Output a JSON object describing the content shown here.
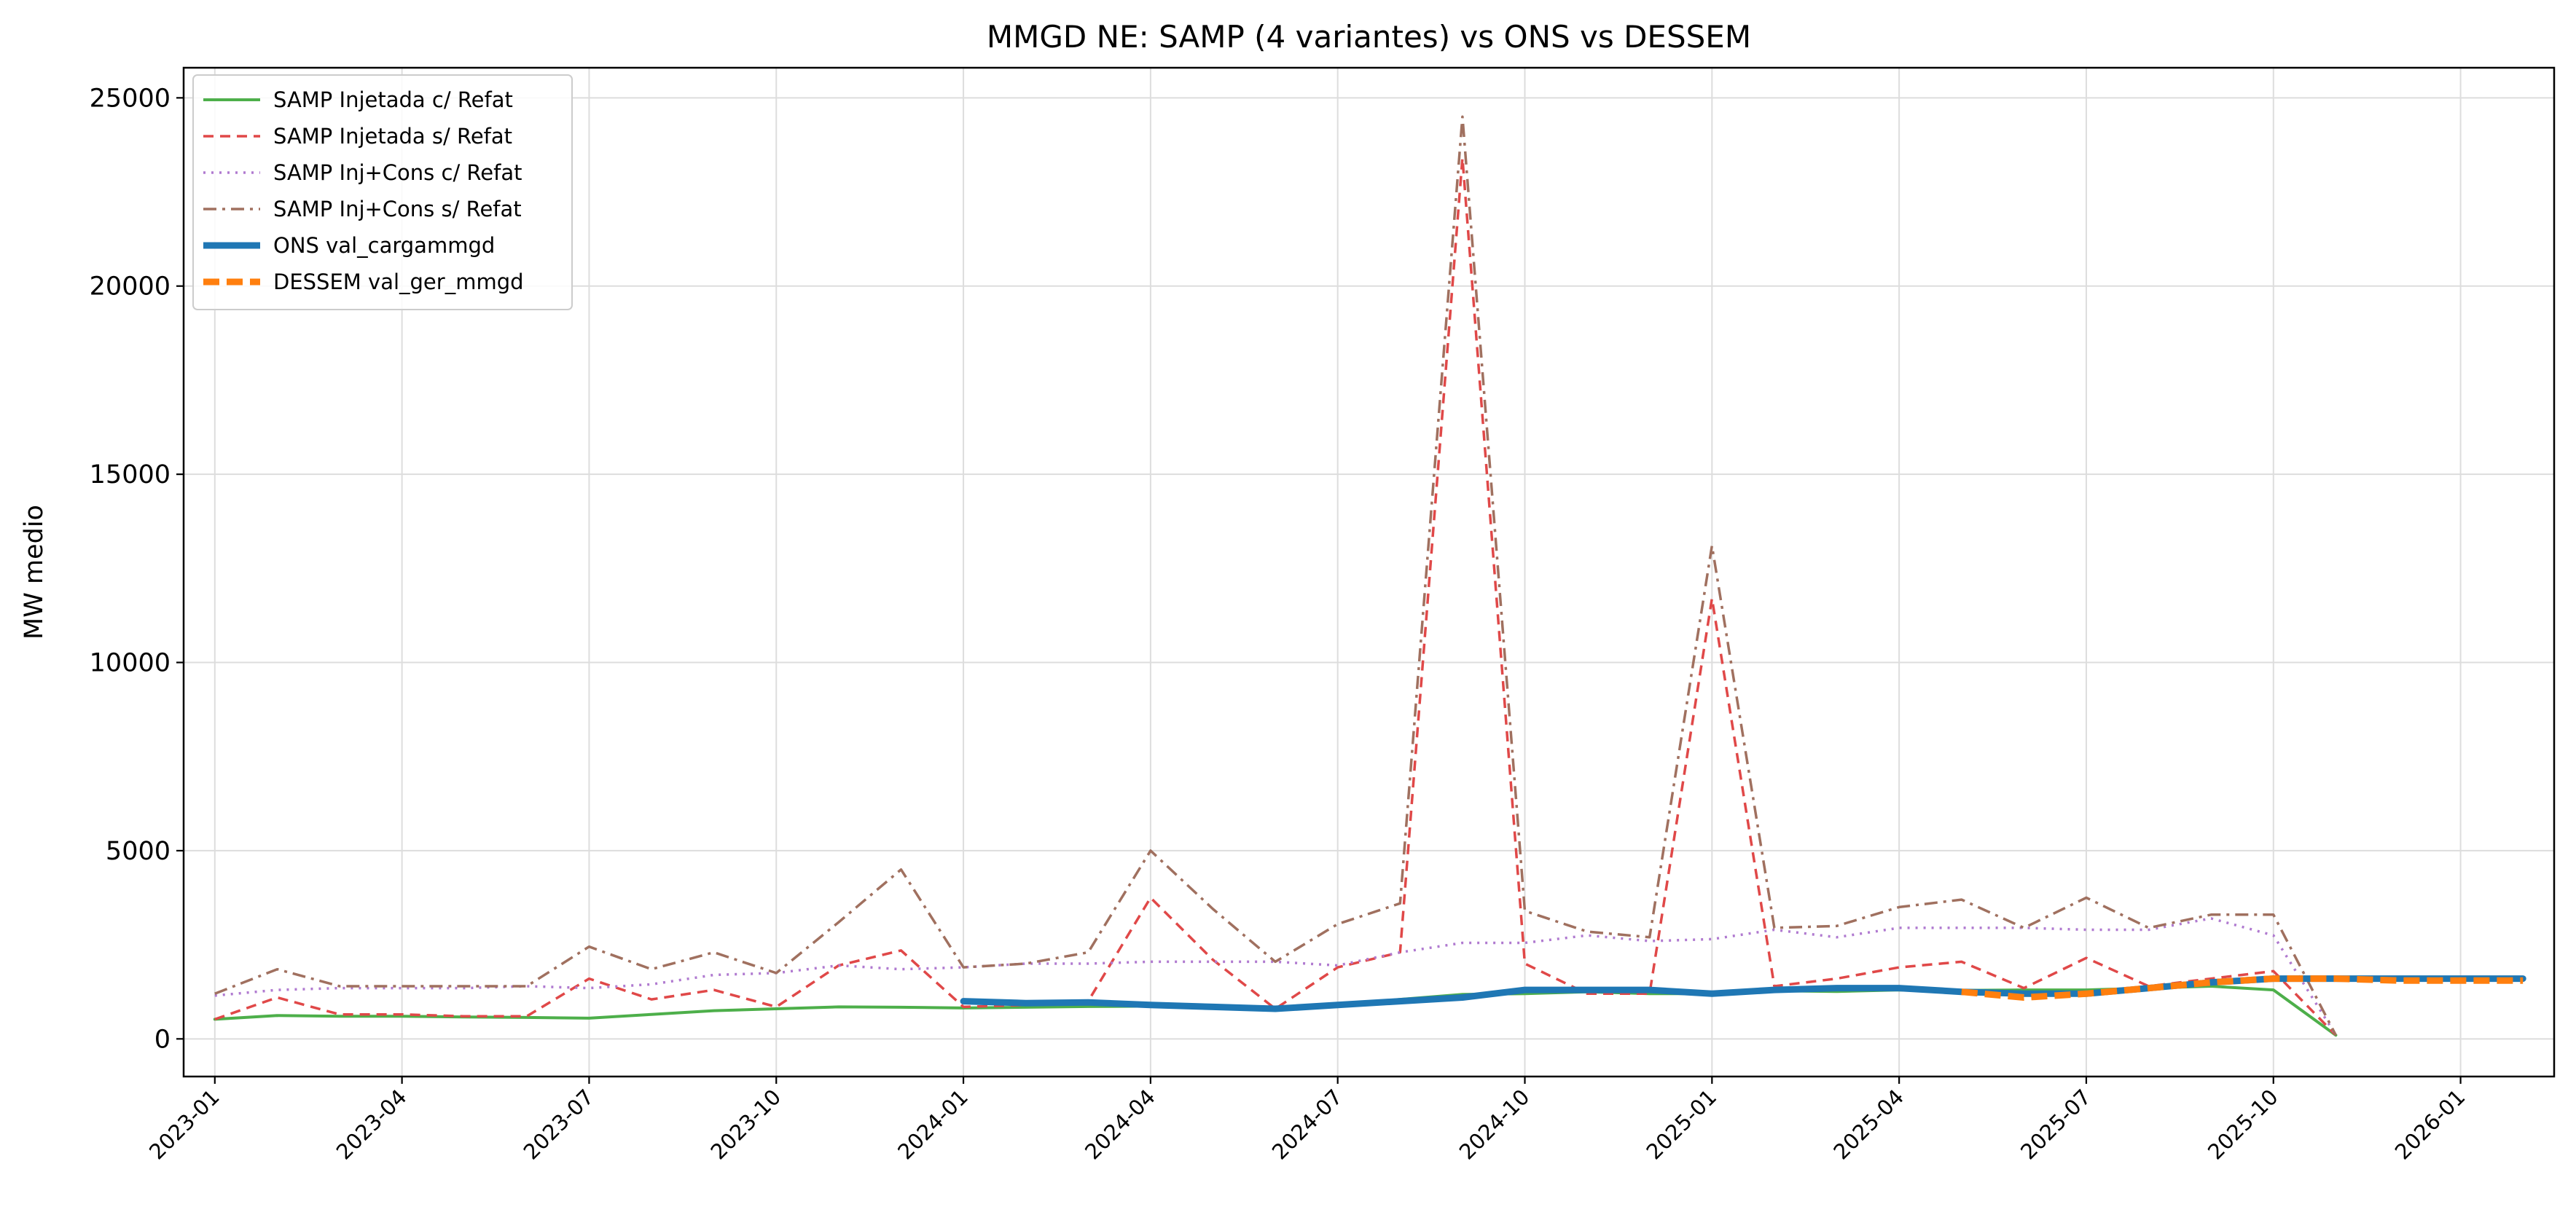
{
  "chart_data": {
    "type": "line",
    "title": "MMGD NE: SAMP (4 variantes) vs ONS vs DESSEM",
    "xlabel": "",
    "ylabel": "MW medio",
    "xlim": [
      -0.5,
      37.5
    ],
    "ylim": [
      -1000,
      25800
    ],
    "grid": true,
    "legend_position": "top-left",
    "x_ticks": [
      {
        "label": "2023-01",
        "x": 0
      },
      {
        "label": "2023-04",
        "x": 3
      },
      {
        "label": "2023-07",
        "x": 6
      },
      {
        "label": "2023-10",
        "x": 9
      },
      {
        "label": "2024-01",
        "x": 12
      },
      {
        "label": "2024-04",
        "x": 15
      },
      {
        "label": "2024-07",
        "x": 18
      },
      {
        "label": "2024-10",
        "x": 21
      },
      {
        "label": "2025-01",
        "x": 24
      },
      {
        "label": "2025-04",
        "x": 27
      },
      {
        "label": "2025-07",
        "x": 30
      },
      {
        "label": "2025-10",
        "x": 33
      },
      {
        "label": "2026-01",
        "x": 36
      }
    ],
    "y_ticks": [
      {
        "label": "0",
        "value": 0
      },
      {
        "label": "5000",
        "value": 5000
      },
      {
        "label": "10000",
        "value": 10000
      },
      {
        "label": "15000",
        "value": 15000
      },
      {
        "label": "20000",
        "value": 20000
      },
      {
        "label": "25000",
        "value": 25000
      }
    ],
    "series": [
      {
        "name": "SAMP Injetada c/ Refat",
        "color": "#4daf4a",
        "style": "solid",
        "x": [
          0,
          1,
          2,
          3,
          4,
          5,
          6,
          7,
          8,
          9,
          10,
          11,
          12,
          13,
          14,
          15,
          16,
          17,
          18,
          19,
          20,
          21,
          22,
          23,
          24,
          25,
          26,
          27,
          28,
          29,
          30,
          31,
          32,
          33,
          34
        ],
        "values": [
          520,
          620,
          600,
          600,
          580,
          570,
          550,
          650,
          750,
          800,
          850,
          840,
          820,
          840,
          860,
          870,
          850,
          800,
          880,
          1050,
          1180,
          1200,
          1250,
          1200,
          1200,
          1280,
          1260,
          1300,
          1290,
          1300,
          1300,
          1350,
          1400,
          1300,
          100
        ]
      },
      {
        "name": "SAMP Injetada s/ Refat",
        "color": "#e04848",
        "style": "dashed",
        "x": [
          0,
          1,
          2,
          3,
          4,
          5,
          6,
          7,
          8,
          9,
          10,
          11,
          12,
          13,
          14,
          15,
          16,
          17,
          18,
          19,
          20,
          21,
          22,
          23,
          24,
          25,
          26,
          27,
          28,
          29,
          30,
          31,
          32,
          33,
          34
        ],
        "values": [
          520,
          1100,
          650,
          650,
          600,
          600,
          1600,
          1050,
          1300,
          850,
          1950,
          2350,
          850,
          900,
          1000,
          3750,
          2100,
          800,
          1900,
          2300,
          23400,
          2000,
          1200,
          1200,
          11700,
          1400,
          1600,
          1900,
          2050,
          1350,
          2150,
          1400,
          1600,
          1800,
          100
        ]
      },
      {
        "name": "SAMP Inj+Cons c/ Refat",
        "color": "#b07ad0",
        "style": "dotted",
        "x": [
          0,
          1,
          2,
          3,
          4,
          5,
          6,
          7,
          8,
          9,
          10,
          11,
          12,
          13,
          14,
          15,
          16,
          17,
          18,
          19,
          20,
          21,
          22,
          23,
          24,
          25,
          26,
          27,
          28,
          29,
          30,
          31,
          32,
          33,
          34
        ],
        "values": [
          1150,
          1300,
          1350,
          1350,
          1350,
          1400,
          1350,
          1450,
          1700,
          1750,
          1950,
          1850,
          1900,
          2000,
          2000,
          2050,
          2050,
          2050,
          1950,
          2300,
          2550,
          2550,
          2750,
          2600,
          2650,
          2900,
          2700,
          2950,
          2950,
          2950,
          2900,
          2900,
          3200,
          2750,
          100
        ]
      },
      {
        "name": "SAMP Inj+Cons s/ Refat",
        "color": "#a0705f",
        "style": "dashdot",
        "x": [
          0,
          1,
          2,
          3,
          4,
          5,
          6,
          7,
          8,
          9,
          10,
          11,
          12,
          13,
          14,
          15,
          16,
          17,
          18,
          19,
          20,
          21,
          22,
          23,
          24,
          25,
          26,
          27,
          28,
          29,
          30,
          31,
          32,
          33,
          34
        ],
        "values": [
          1200,
          1850,
          1400,
          1400,
          1400,
          1400,
          2450,
          1850,
          2300,
          1750,
          3100,
          4500,
          1900,
          2000,
          2300,
          5000,
          3450,
          2050,
          3050,
          3600,
          24500,
          3400,
          2850,
          2700,
          13100,
          2950,
          3000,
          3500,
          3700,
          2950,
          3750,
          2950,
          3300,
          3300,
          100
        ]
      },
      {
        "name": "ONS val_cargammgd",
        "color": "#1f77b4",
        "style": "solid-thick",
        "x": [
          12,
          13,
          14,
          15,
          16,
          17,
          18,
          19,
          20,
          21,
          22,
          23,
          24,
          25,
          26,
          27,
          28,
          29,
          30,
          31,
          32,
          33,
          34,
          35,
          36,
          37
        ],
        "values": [
          1000,
          950,
          970,
          900,
          850,
          800,
          900,
          1000,
          1100,
          1300,
          1300,
          1300,
          1200,
          1300,
          1350,
          1350,
          1250,
          1200,
          1200,
          1350,
          1500,
          1600,
          1600,
          1600,
          1600,
          1600
        ]
      },
      {
        "name": "DESSEM val_ger_mmgd",
        "color": "#ff7f0e",
        "style": "dashed-thick",
        "x": [
          28,
          29,
          30,
          31,
          32,
          33,
          34,
          35,
          36,
          37
        ],
        "values": [
          1250,
          1100,
          1200,
          1350,
          1500,
          1600,
          1600,
          1550,
          1550,
          1550
        ]
      }
    ]
  }
}
